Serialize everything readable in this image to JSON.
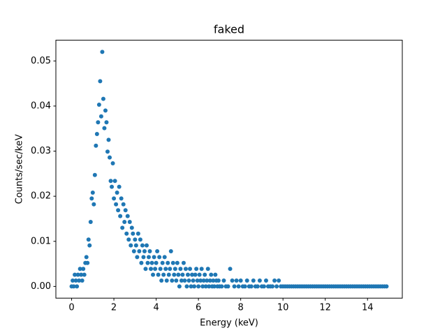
{
  "chart_data": {
    "type": "scatter",
    "title": "faked",
    "xlabel": "Energy (keV)",
    "ylabel": "Counts/sec/keV",
    "color": "#1f77b4",
    "x": [
      0,
      0.05,
      0.1,
      0.15,
      0.2,
      0.25,
      0.3,
      0.35,
      0.4,
      0.45,
      0.5,
      0.55,
      0.6,
      0.65,
      0.7,
      0.75,
      0.8,
      0.85,
      0.9,
      0.95,
      1,
      1.05,
      1.1,
      1.15,
      1.2,
      1.25,
      1.3,
      1.35,
      1.4,
      1.45,
      1.5,
      1.55,
      1.6,
      1.65,
      1.7,
      1.75,
      1.8,
      1.85,
      1.9,
      1.95,
      2,
      2.05,
      2.1,
      2.15,
      2.2,
      2.25,
      2.3,
      2.35,
      2.4,
      2.45,
      2.5,
      2.55,
      2.6,
      2.65,
      2.7,
      2.75,
      2.8,
      2.85,
      2.9,
      2.95,
      3,
      3.05,
      3.1,
      3.15,
      3.2,
      3.25,
      3.3,
      3.35,
      3.4,
      3.45,
      3.5,
      3.55,
      3.6,
      3.65,
      3.7,
      3.75,
      3.8,
      3.85,
      3.9,
      3.95,
      4,
      4.05,
      4.1,
      4.15,
      4.2,
      4.25,
      4.3,
      4.35,
      4.4,
      4.45,
      4.5,
      4.55,
      4.6,
      4.65,
      4.7,
      4.75,
      4.8,
      4.85,
      4.9,
      4.95,
      5,
      5.05,
      5.1,
      5.15,
      5.2,
      5.25,
      5.3,
      5.35,
      5.4,
      5.45,
      5.5,
      5.55,
      5.6,
      5.65,
      5.7,
      5.75,
      5.8,
      5.85,
      5.9,
      5.95,
      6,
      6.05,
      6.1,
      6.15,
      6.2,
      6.25,
      6.3,
      6.35,
      6.4,
      6.45,
      6.5,
      6.55,
      6.6,
      6.65,
      6.7,
      6.75,
      6.8,
      6.85,
      6.9,
      6.95,
      7,
      7.1,
      7.2,
      7.3,
      7.4,
      7.5,
      7.6,
      7.7,
      7.8,
      7.9,
      8,
      8.1,
      8.2,
      8.3,
      8.4,
      8.5,
      8.6,
      8.7,
      8.8,
      8.9,
      9,
      9.1,
      9.2,
      9.3,
      9.4,
      9.5,
      9.6,
      9.7,
      9.8,
      9.9,
      10,
      10.1,
      10.2,
      10.3,
      10.4,
      10.5,
      10.6,
      10.7,
      10.8,
      10.9,
      11,
      11.1,
      11.2,
      11.3,
      11.4,
      11.5,
      11.6,
      11.7,
      11.8,
      11.9,
      12,
      12.1,
      12.2,
      12.3,
      12.4,
      12.5,
      12.6,
      12.7,
      12.8,
      12.9,
      13,
      13.1,
      13.2,
      13.3,
      13.4,
      13.5,
      13.6,
      13.7,
      13.8,
      13.9,
      14,
      14.1,
      14.2,
      14.3,
      14.4,
      14.5,
      14.6,
      14.7,
      14.8,
      14.9
    ],
    "values": [
      0,
      0.0013,
      0,
      0.0026,
      0.0013,
      0,
      0.0026,
      0.0013,
      0.0039,
      0.0026,
      0.0013,
      0.0039,
      0.0026,
      0.0052,
      0.0065,
      0.0052,
      0.0104,
      0.0091,
      0.0143,
      0.0195,
      0.0208,
      0.0182,
      0.0247,
      0.0312,
      0.0338,
      0.0364,
      0.0403,
      0.0455,
      0.0377,
      0.052,
      0.0416,
      0.0351,
      0.039,
      0.0364,
      0.0299,
      0.0325,
      0.0286,
      0.0234,
      0.0221,
      0.0273,
      0.0195,
      0.0234,
      0.0182,
      0.0208,
      0.0169,
      0.0221,
      0.0156,
      0.0195,
      0.013,
      0.0182,
      0.0143,
      0.0169,
      0.0117,
      0.0156,
      0.0104,
      0.0143,
      0.0091,
      0.013,
      0.0117,
      0.0078,
      0.0104,
      0.0091,
      0.0065,
      0.0117,
      0.0078,
      0.0104,
      0.0052,
      0.0091,
      0.0065,
      0.0078,
      0.0039,
      0.0091,
      0.0052,
      0.0065,
      0.0078,
      0.0039,
      0.0052,
      0.0026,
      0.0065,
      0.0039,
      0.0052,
      0.0078,
      0.0026,
      0.0065,
      0.0039,
      0.0013,
      0.0052,
      0.0026,
      0.0065,
      0.0039,
      0.0013,
      0.0052,
      0.0026,
      0.0039,
      0.0078,
      0.0013,
      0.0052,
      0.0026,
      0.0039,
      0.0013,
      0.0052,
      0.0026,
      0,
      0.0039,
      0.0013,
      0.0026,
      0.0052,
      0.0013,
      0.0039,
      0,
      0.0026,
      0.0013,
      0.0039,
      0,
      0.0026,
      0.0013,
      0,
      0.0026,
      0.0039,
      0.0013,
      0,
      0.0026,
      0.0013,
      0.0039,
      0,
      0.0013,
      0.0026,
      0,
      0.0013,
      0.0039,
      0,
      0.0013,
      0.0026,
      0,
      0.0013,
      0,
      0.0026,
      0.0013,
      0,
      0.0013,
      0,
      0,
      0.0013,
      0,
      0,
      0.0039,
      0.0013,
      0,
      0.0013,
      0,
      0.0013,
      0,
      0,
      0.0013,
      0,
      0,
      0.0013,
      0,
      0,
      0.0013,
      0,
      0,
      0.0013,
      0,
      0,
      0,
      0.0013,
      0,
      0.0013,
      0,
      0,
      0,
      0,
      0,
      0,
      0,
      0,
      0,
      0,
      0,
      0,
      0,
      0,
      0,
      0,
      0,
      0,
      0,
      0,
      0,
      0,
      0,
      0,
      0,
      0,
      0,
      0,
      0,
      0,
      0,
      0,
      0,
      0,
      0,
      0,
      0,
      0,
      0,
      0,
      0,
      0,
      0,
      0,
      0,
      0,
      0,
      0,
      0,
      0,
      0
    ],
    "xlim": [
      -0.745,
      15.645
    ],
    "xticks": [
      0,
      2,
      4,
      6,
      8,
      10,
      12,
      14
    ],
    "ylim": [
      -0.0026,
      0.0546
    ],
    "yticks": [
      {
        "value": 0,
        "label": "0.00"
      },
      0.01,
      0.02,
      0.03,
      0.04,
      0.05
    ]
  }
}
